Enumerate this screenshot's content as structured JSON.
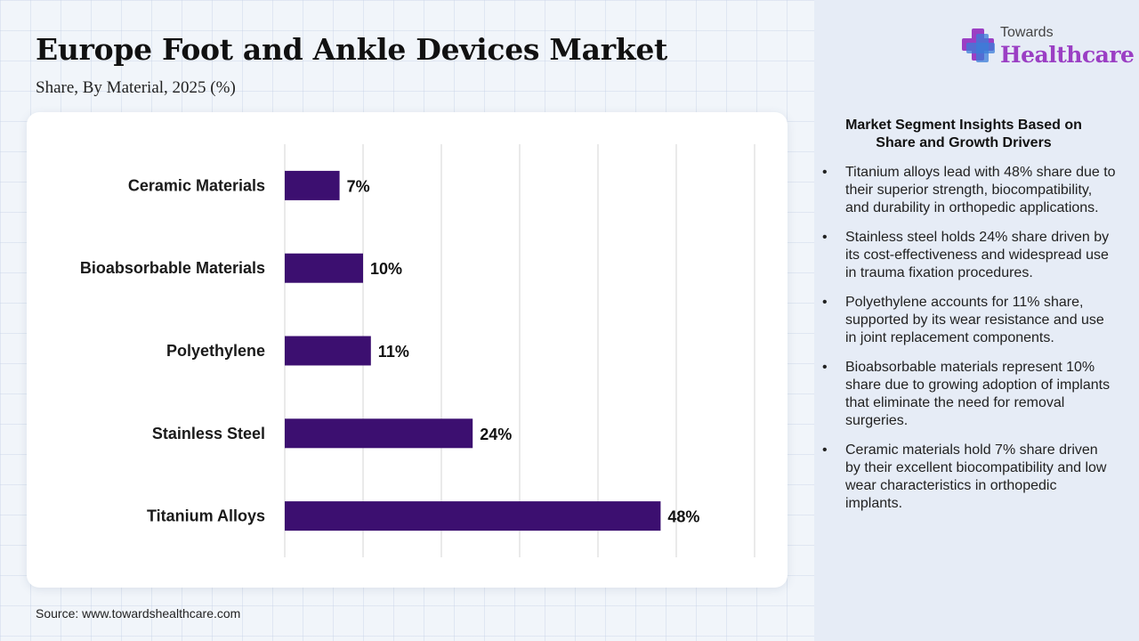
{
  "header": {
    "title": "Europe Foot and Ankle Devices Market",
    "subtitle": "Share, By Material, 2025 (%)"
  },
  "logo": {
    "small_text": "Towards",
    "big_text": "Healthcare"
  },
  "colors": {
    "bar": "#3c0f70",
    "logo_purple": "#9b3fc4",
    "logo_blue": "#3b7dd8"
  },
  "chart_data": {
    "type": "bar",
    "orientation": "horizontal",
    "categories": [
      "Ceramic Materials",
      "Bioabsorbable Materials",
      "Polyethylene",
      "Stainless Steel",
      "Titanium Alloys"
    ],
    "values": [
      7,
      10,
      11,
      24,
      48
    ],
    "value_labels": [
      "7%",
      "10%",
      "11%",
      "24%",
      "48%"
    ],
    "xlim": [
      0,
      60
    ],
    "grid": true
  },
  "insights": {
    "title": "Market Segment Insights Based on Share and Growth Drivers",
    "items": [
      "Titanium alloys lead with 48% share due to their superior strength, biocompatibility, and durability in orthopedic applications.",
      "Stainless steel holds 24% share driven by its cost-effectiveness and widespread use in trauma fixation procedures.",
      "Polyethylene accounts for 11% share, supported by its wear resistance and use in joint replacement components.",
      "Bioabsorbable materials represent 10% share due to growing adoption of implants that eliminate the need for removal surgeries.",
      "Ceramic materials hold 7% share driven by their excellent biocompatibility and low wear characteristics in orthopedic implants."
    ]
  },
  "source": "Source: www.towardshealthcare.com"
}
